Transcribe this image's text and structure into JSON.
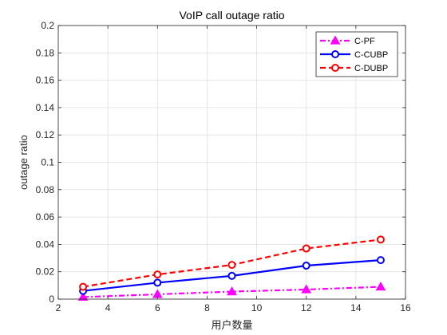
{
  "chart_data": {
    "type": "line",
    "title": "VoIP call outage ratio",
    "xlabel": "用户数量",
    "ylabel": "outage ratio",
    "xlim": [
      2,
      16
    ],
    "ylim": [
      0,
      0.2
    ],
    "xticks": [
      "2",
      "4",
      "6",
      "8",
      "10",
      "12",
      "14",
      "16"
    ],
    "yticks": [
      "0",
      "0.02",
      "0.04",
      "0.06",
      "0.08",
      "0.1",
      "0.12",
      "0.14",
      "0.16",
      "0.18",
      "0.2"
    ],
    "grid": true,
    "legend_position": "top-right",
    "x": [
      3,
      6,
      9,
      12,
      15
    ],
    "series": [
      {
        "name": "C-PF",
        "values": [
          0.0015,
          0.0035,
          0.0055,
          0.007,
          0.009
        ],
        "color": "#ff00ff",
        "line_style": "dash-dot",
        "marker": "triangle"
      },
      {
        "name": "C-CUBP",
        "values": [
          0.006,
          0.012,
          0.017,
          0.0245,
          0.0285
        ],
        "color": "#0000ff",
        "line_style": "solid",
        "marker": "circle"
      },
      {
        "name": "C-DUBP",
        "values": [
          0.009,
          0.018,
          0.025,
          0.037,
          0.0435
        ],
        "color": "#ff0000",
        "line_style": "dashed",
        "marker": "circle"
      }
    ]
  }
}
